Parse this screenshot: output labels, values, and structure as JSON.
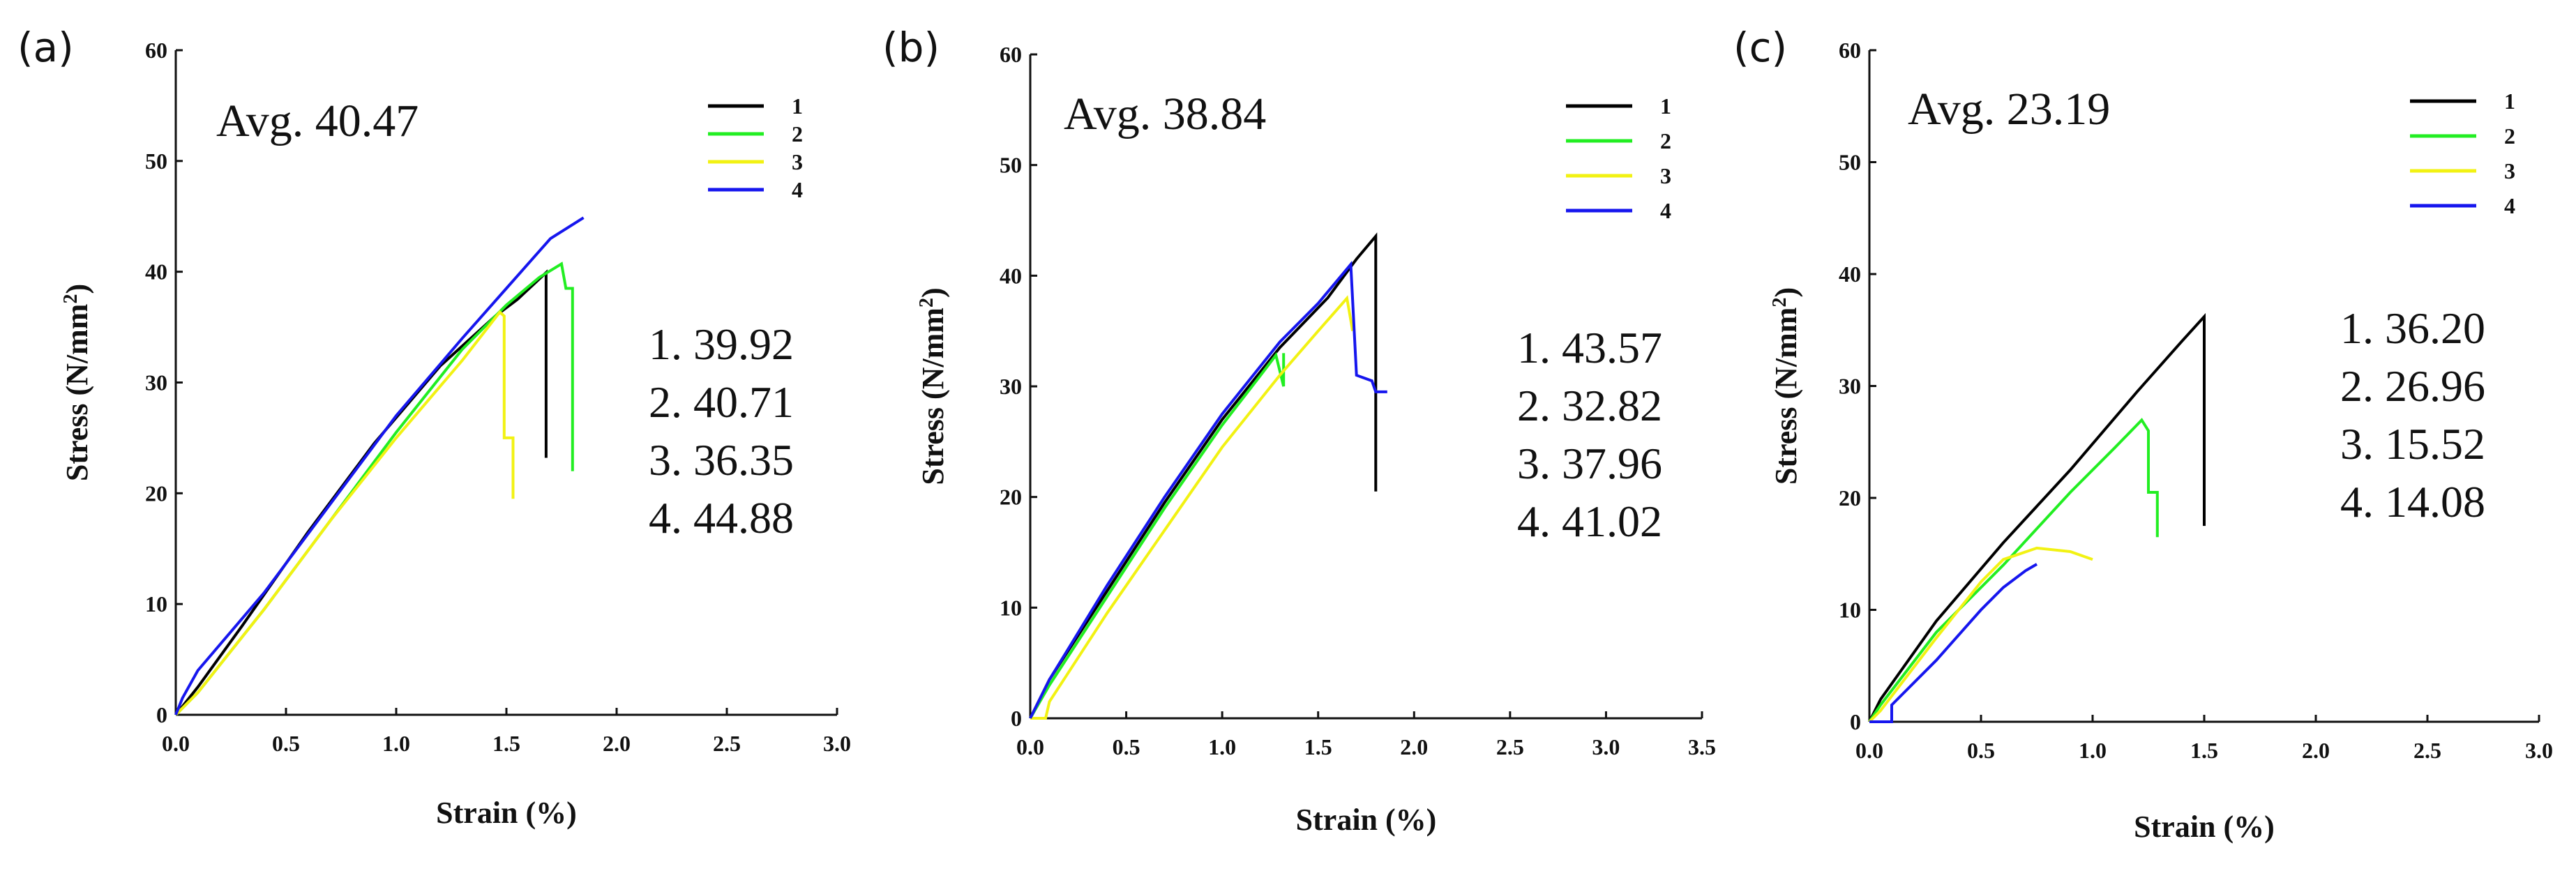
{
  "chart_data": [
    {
      "panel": "(a)",
      "type": "line",
      "average_label": "Avg. 40.47",
      "xlabel": "Strain (%)",
      "ylabel_main": "Stress (N/mm",
      "ylabel_sup": "2",
      "ylabel_tail": ")",
      "xlim": [
        0,
        3.0
      ],
      "ylim": [
        0,
        60
      ],
      "xticks": [
        "0.0",
        "0.5",
        "1.0",
        "1.5",
        "2.0",
        "2.5",
        "3.0"
      ],
      "xtick_values": [
        0,
        0.5,
        1.0,
        1.5,
        2.0,
        2.5,
        3.0
      ],
      "yticks": [
        "0",
        "10",
        "20",
        "30",
        "40",
        "50",
        "60"
      ],
      "ytick_values": [
        0,
        10,
        20,
        30,
        40,
        50,
        60
      ],
      "legend_position": "top-right",
      "annotations": [
        "1. 39.92",
        "2. 40.71",
        "3. 36.35",
        "4. 44.88"
      ],
      "series": [
        {
          "name": "1",
          "color": "#000000",
          "points": [
            [
              0.0,
              0.0
            ],
            [
              0.1,
              2.5
            ],
            [
              0.3,
              8.0
            ],
            [
              0.6,
              16.5
            ],
            [
              0.9,
              24.5
            ],
            [
              1.2,
              31.5
            ],
            [
              1.45,
              36.0
            ],
            [
              1.55,
              37.5
            ],
            [
              1.68,
              39.92
            ],
            [
              1.68,
              23.2
            ]
          ]
        },
        {
          "name": "2",
          "color": "#22ee22",
          "points": [
            [
              0.0,
              0.0
            ],
            [
              0.1,
              2.0
            ],
            [
              0.4,
              9.5
            ],
            [
              0.7,
              17.5
            ],
            [
              1.0,
              25.5
            ],
            [
              1.3,
              33.0
            ],
            [
              1.5,
              37.0
            ],
            [
              1.65,
              39.5
            ],
            [
              1.75,
              40.71
            ],
            [
              1.77,
              38.5
            ],
            [
              1.8,
              38.5
            ],
            [
              1.8,
              22.0
            ]
          ]
        },
        {
          "name": "3",
          "color": "#f2f213",
          "points": [
            [
              0.0,
              0.0
            ],
            [
              0.1,
              2.0
            ],
            [
              0.4,
              9.5
            ],
            [
              0.7,
              17.5
            ],
            [
              1.0,
              25.0
            ],
            [
              1.3,
              32.0
            ],
            [
              1.47,
              36.35
            ],
            [
              1.49,
              36.0
            ],
            [
              1.49,
              25.0
            ],
            [
              1.53,
              25.0
            ],
            [
              1.53,
              19.5
            ]
          ]
        },
        {
          "name": "4",
          "color": "#1616ee",
          "points": [
            [
              0.0,
              0.0
            ],
            [
              0.03,
              1.5
            ],
            [
              0.1,
              4.0
            ],
            [
              0.4,
              11.0
            ],
            [
              0.7,
              19.0
            ],
            [
              1.0,
              27.0
            ],
            [
              1.3,
              34.0
            ],
            [
              1.5,
              38.5
            ],
            [
              1.7,
              43.0
            ],
            [
              1.85,
              44.88
            ]
          ]
        }
      ]
    },
    {
      "panel": "(b)",
      "type": "line",
      "average_label": "Avg. 38.84",
      "xlabel": "Strain (%)",
      "ylabel_main": "Stress (N/mm",
      "ylabel_sup": "2",
      "ylabel_tail": ")",
      "xlim": [
        0,
        3.5
      ],
      "ylim": [
        0,
        60
      ],
      "xticks": [
        "0.0",
        "0.5",
        "1.0",
        "1.5",
        "2.0",
        "2.5",
        "3.0",
        "3.5"
      ],
      "xtick_values": [
        0,
        0.5,
        1.0,
        1.5,
        2.0,
        2.5,
        3.0,
        3.5
      ],
      "yticks": [
        "0",
        "10",
        "20",
        "30",
        "40",
        "50",
        "60"
      ],
      "ytick_values": [
        0,
        10,
        20,
        30,
        40,
        50,
        60
      ],
      "legend_position": "top-right",
      "annotations": [
        "1. 43.57",
        "2. 32.82",
        "3. 37.96",
        "4. 41.02"
      ],
      "series": [
        {
          "name": "1",
          "color": "#000000",
          "points": [
            [
              0.0,
              0.0
            ],
            [
              0.1,
              3.5
            ],
            [
              0.4,
              11.5
            ],
            [
              0.7,
              19.5
            ],
            [
              1.0,
              27.0
            ],
            [
              1.3,
              33.5
            ],
            [
              1.55,
              38.0
            ],
            [
              1.7,
              41.5
            ],
            [
              1.8,
              43.57
            ],
            [
              1.8,
              20.5
            ]
          ]
        },
        {
          "name": "2",
          "color": "#22ee22",
          "points": [
            [
              0.0,
              0.0
            ],
            [
              0.1,
              3.0
            ],
            [
              0.4,
              11.0
            ],
            [
              0.7,
              19.0
            ],
            [
              1.0,
              26.5
            ],
            [
              1.2,
              31.0
            ],
            [
              1.28,
              32.82
            ],
            [
              1.32,
              30.0
            ],
            [
              1.32,
              33.0
            ]
          ]
        },
        {
          "name": "3",
          "color": "#f2f213",
          "points": [
            [
              0.0,
              0.0
            ],
            [
              0.08,
              0.0
            ],
            [
              0.1,
              1.5
            ],
            [
              0.4,
              9.5
            ],
            [
              0.7,
              17.0
            ],
            [
              1.0,
              24.5
            ],
            [
              1.3,
              31.0
            ],
            [
              1.5,
              35.0
            ],
            [
              1.65,
              37.96
            ],
            [
              1.68,
              35.0
            ]
          ]
        },
        {
          "name": "4",
          "color": "#1616ee",
          "points": [
            [
              0.0,
              0.0
            ],
            [
              0.1,
              3.5
            ],
            [
              0.4,
              12.0
            ],
            [
              0.7,
              20.0
            ],
            [
              1.0,
              27.5
            ],
            [
              1.3,
              34.0
            ],
            [
              1.5,
              37.5
            ],
            [
              1.67,
              41.02
            ],
            [
              1.7,
              31.0
            ],
            [
              1.78,
              30.5
            ],
            [
              1.8,
              29.5
            ],
            [
              1.86,
              29.5
            ]
          ]
        }
      ]
    },
    {
      "panel": "(c)",
      "type": "line",
      "average_label": "Avg. 23.19",
      "xlabel": "Strain (%)",
      "ylabel_main": "Stress (N/mm",
      "ylabel_sup": "2",
      "ylabel_tail": ")",
      "xlim": [
        0,
        3.0
      ],
      "ylim": [
        0,
        60
      ],
      "xticks": [
        "0.0",
        "0.5",
        "1.0",
        "1.5",
        "2.0",
        "2.5",
        "3.0"
      ],
      "xtick_values": [
        0,
        0.5,
        1.0,
        1.5,
        2.0,
        2.5,
        3.0
      ],
      "yticks": [
        "0",
        "10",
        "20",
        "30",
        "40",
        "50",
        "60"
      ],
      "ytick_values": [
        0,
        10,
        20,
        30,
        40,
        50,
        60
      ],
      "legend_position": "top-right",
      "annotations": [
        "1. 36.20",
        "2. 26.96",
        "3. 15.52",
        "4. 14.08"
      ],
      "series": [
        {
          "name": "1",
          "color": "#000000",
          "points": [
            [
              0.0,
              0.0
            ],
            [
              0.05,
              2.0
            ],
            [
              0.3,
              9.0
            ],
            [
              0.6,
              16.0
            ],
            [
              0.9,
              22.5
            ],
            [
              1.2,
              29.5
            ],
            [
              1.4,
              34.0
            ],
            [
              1.5,
              36.2
            ],
            [
              1.5,
              17.5
            ]
          ]
        },
        {
          "name": "2",
          "color": "#22ee22",
          "points": [
            [
              0.0,
              0.0
            ],
            [
              0.05,
              1.5
            ],
            [
              0.3,
              8.0
            ],
            [
              0.6,
              14.0
            ],
            [
              0.9,
              20.5
            ],
            [
              1.1,
              24.5
            ],
            [
              1.22,
              26.96
            ],
            [
              1.25,
              26.0
            ],
            [
              1.25,
              20.5
            ],
            [
              1.29,
              20.5
            ],
            [
              1.29,
              16.5
            ]
          ]
        },
        {
          "name": "3",
          "color": "#f2f213",
          "points": [
            [
              0.0,
              0.0
            ],
            [
              0.05,
              1.0
            ],
            [
              0.3,
              7.5
            ],
            [
              0.5,
              12.5
            ],
            [
              0.6,
              14.5
            ],
            [
              0.75,
              15.52
            ],
            [
              0.9,
              15.2
            ],
            [
              1.0,
              14.5
            ]
          ]
        },
        {
          "name": "4",
          "color": "#1616ee",
          "points": [
            [
              0.0,
              0.0
            ],
            [
              0.1,
              0.0
            ],
            [
              0.1,
              1.5
            ],
            [
              0.3,
              5.5
            ],
            [
              0.5,
              10.0
            ],
            [
              0.6,
              12.0
            ],
            [
              0.7,
              13.5
            ],
            [
              0.75,
              14.08
            ]
          ]
        }
      ]
    }
  ]
}
